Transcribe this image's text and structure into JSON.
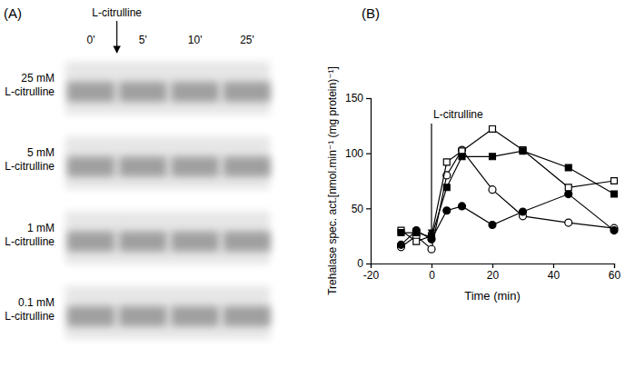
{
  "gel": {
    "panel_label": "(A)",
    "treatment_label": "L-citrulline",
    "lanes": [
      "0'",
      "5'",
      "10'",
      "25'"
    ],
    "rows": [
      [
        "25 mM",
        "L-citrulline"
      ],
      [
        "5 mM",
        "L-citrulline"
      ],
      [
        "1 mM",
        "L-citrulline"
      ],
      [
        "0.1 mM",
        "L-citrulline"
      ]
    ]
  },
  "chart_data": {
    "type": "line",
    "panel_label": "(B)",
    "x_label": "Time (min)",
    "y_label": "Trehalase spec. act.[nmol.min⁻¹ (mg protein)⁻¹]",
    "annotations": [
      {
        "text": "L-citrulline",
        "x": 0
      }
    ],
    "x": [
      -10,
      -5,
      0,
      5,
      10,
      20,
      30,
      45,
      60
    ],
    "series": [
      {
        "color": "#000000",
        "marker": "circle-open",
        "values": [
          15,
          25,
          13,
          80,
          103,
          67,
          43,
          37,
          32
        ]
      },
      {
        "color": "#000000",
        "marker": "circle",
        "values": [
          17,
          30,
          22,
          48,
          52,
          35,
          47,
          63,
          30
        ]
      },
      {
        "color": "#000000",
        "marker": "square-open",
        "values": [
          30,
          20,
          25,
          92,
          102,
          122,
          103,
          69,
          75
        ]
      },
      {
        "color": "#000000",
        "marker": "square",
        "values": [
          28,
          28,
          24,
          69,
          97,
          97,
          102,
          87,
          63
        ]
      }
    ],
    "xlim": [
      -20,
      60
    ],
    "xticks": [
      -20,
      0,
      20,
      40,
      60
    ],
    "ylim": [
      0,
      150
    ],
    "yticks": [
      0,
      50,
      100,
      150
    ],
    "grid": false
  }
}
